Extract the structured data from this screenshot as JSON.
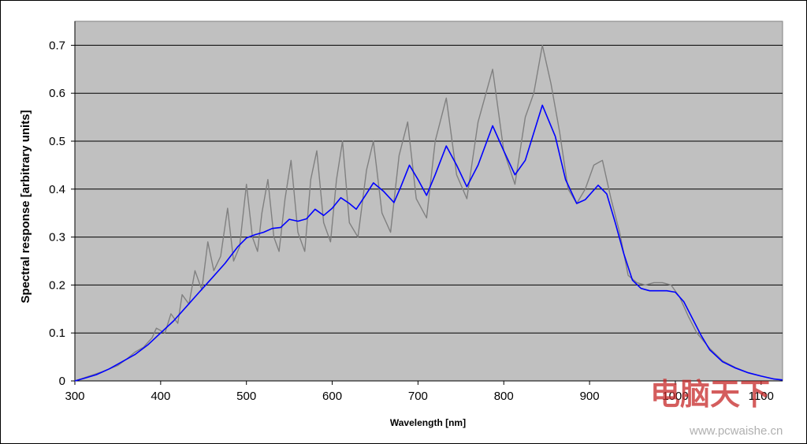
{
  "chart_data": {
    "type": "line",
    "xlabel": "Wavelength [nm]",
    "ylabel": "Spectral response [arbitrary units]",
    "xlim": [
      300,
      1125
    ],
    "ylim": [
      0,
      0.75
    ],
    "x_ticks": [
      "300",
      "400",
      "500",
      "600",
      "700",
      "800",
      "900",
      "1000",
      "1100"
    ],
    "y_ticks": [
      "0",
      "0.1",
      "0.2",
      "0.3",
      "0.4",
      "0.5",
      "0.6",
      "0.7"
    ],
    "grid": "horizontal",
    "plot_background": "#c0c0c0",
    "series": [
      {
        "color": "#0000ff",
        "points": [
          [
            300,
            0
          ],
          [
            310,
            0.005
          ],
          [
            325,
            0.013
          ],
          [
            340,
            0.025
          ],
          [
            355,
            0.04
          ],
          [
            370,
            0.055
          ],
          [
            385,
            0.075
          ],
          [
            400,
            0.1
          ],
          [
            415,
            0.125
          ],
          [
            430,
            0.155
          ],
          [
            445,
            0.185
          ],
          [
            460,
            0.215
          ],
          [
            475,
            0.245
          ],
          [
            490,
            0.28
          ],
          [
            500,
            0.298
          ],
          [
            510,
            0.305
          ],
          [
            520,
            0.31
          ],
          [
            530,
            0.318
          ],
          [
            540,
            0.32
          ],
          [
            550,
            0.337
          ],
          [
            560,
            0.333
          ],
          [
            570,
            0.338
          ],
          [
            580,
            0.358
          ],
          [
            590,
            0.345
          ],
          [
            600,
            0.36
          ],
          [
            610,
            0.382
          ],
          [
            620,
            0.37
          ],
          [
            628,
            0.358
          ],
          [
            638,
            0.385
          ],
          [
            648,
            0.413
          ],
          [
            660,
            0.395
          ],
          [
            672,
            0.372
          ],
          [
            680,
            0.405
          ],
          [
            690,
            0.45
          ],
          [
            700,
            0.42
          ],
          [
            710,
            0.387
          ],
          [
            720,
            0.43
          ],
          [
            733,
            0.49
          ],
          [
            745,
            0.45
          ],
          [
            757,
            0.405
          ],
          [
            770,
            0.45
          ],
          [
            787,
            0.532
          ],
          [
            800,
            0.48
          ],
          [
            813,
            0.43
          ],
          [
            825,
            0.46
          ],
          [
            845,
            0.575
          ],
          [
            860,
            0.51
          ],
          [
            872,
            0.42
          ],
          [
            885,
            0.37
          ],
          [
            895,
            0.378
          ],
          [
            910,
            0.408
          ],
          [
            920,
            0.39
          ],
          [
            930,
            0.33
          ],
          [
            940,
            0.265
          ],
          [
            950,
            0.21
          ],
          [
            960,
            0.193
          ],
          [
            970,
            0.188
          ],
          [
            980,
            0.188
          ],
          [
            990,
            0.188
          ],
          [
            1000,
            0.185
          ],
          [
            1010,
            0.165
          ],
          [
            1020,
            0.13
          ],
          [
            1030,
            0.095
          ],
          [
            1040,
            0.065
          ],
          [
            1055,
            0.04
          ],
          [
            1070,
            0.027
          ],
          [
            1085,
            0.017
          ],
          [
            1100,
            0.01
          ],
          [
            1115,
            0.004
          ],
          [
            1125,
            0.002
          ]
        ]
      },
      {
        "color": "#808080",
        "points": [
          [
            300,
            0
          ],
          [
            330,
            0.018
          ],
          [
            350,
            0.032
          ],
          [
            360,
            0.045
          ],
          [
            370,
            0.06
          ],
          [
            380,
            0.07
          ],
          [
            390,
            0.09
          ],
          [
            395,
            0.11
          ],
          [
            405,
            0.1
          ],
          [
            412,
            0.14
          ],
          [
            420,
            0.12
          ],
          [
            425,
            0.18
          ],
          [
            433,
            0.16
          ],
          [
            440,
            0.23
          ],
          [
            448,
            0.19
          ],
          [
            455,
            0.29
          ],
          [
            462,
            0.23
          ],
          [
            470,
            0.26
          ],
          [
            478,
            0.36
          ],
          [
            485,
            0.25
          ],
          [
            492,
            0.28
          ],
          [
            500,
            0.41
          ],
          [
            507,
            0.3
          ],
          [
            513,
            0.27
          ],
          [
            518,
            0.35
          ],
          [
            525,
            0.42
          ],
          [
            532,
            0.3
          ],
          [
            538,
            0.27
          ],
          [
            545,
            0.38
          ],
          [
            552,
            0.46
          ],
          [
            560,
            0.31
          ],
          [
            568,
            0.27
          ],
          [
            575,
            0.42
          ],
          [
            582,
            0.48
          ],
          [
            590,
            0.33
          ],
          [
            598,
            0.29
          ],
          [
            605,
            0.42
          ],
          [
            612,
            0.5
          ],
          [
            620,
            0.33
          ],
          [
            630,
            0.3
          ],
          [
            640,
            0.44
          ],
          [
            648,
            0.5
          ],
          [
            658,
            0.35
          ],
          [
            668,
            0.31
          ],
          [
            678,
            0.47
          ],
          [
            688,
            0.54
          ],
          [
            698,
            0.38
          ],
          [
            710,
            0.34
          ],
          [
            720,
            0.5
          ],
          [
            733,
            0.59
          ],
          [
            745,
            0.43
          ],
          [
            757,
            0.38
          ],
          [
            770,
            0.54
          ],
          [
            787,
            0.65
          ],
          [
            800,
            0.48
          ],
          [
            813,
            0.41
          ],
          [
            825,
            0.55
          ],
          [
            835,
            0.6
          ],
          [
            845,
            0.7
          ],
          [
            855,
            0.62
          ],
          [
            865,
            0.52
          ],
          [
            875,
            0.4
          ],
          [
            885,
            0.37
          ],
          [
            895,
            0.4
          ],
          [
            905,
            0.45
          ],
          [
            915,
            0.46
          ],
          [
            925,
            0.38
          ],
          [
            935,
            0.31
          ],
          [
            945,
            0.22
          ],
          [
            955,
            0.205
          ],
          [
            965,
            0.2
          ],
          [
            975,
            0.205
          ],
          [
            985,
            0.205
          ],
          [
            995,
            0.2
          ],
          [
            1005,
            0.175
          ],
          [
            1015,
            0.135
          ],
          [
            1025,
            0.1
          ],
          [
            1040,
            0.068
          ],
          [
            1055,
            0.042
          ],
          [
            1070,
            0.028
          ],
          [
            1085,
            0.017
          ],
          [
            1100,
            0.01
          ],
          [
            1115,
            0.004
          ],
          [
            1125,
            0.002
          ]
        ]
      }
    ]
  },
  "watermark": {
    "logo_text": "电脑天下",
    "url_text": "www.pcwaishe.cn"
  }
}
